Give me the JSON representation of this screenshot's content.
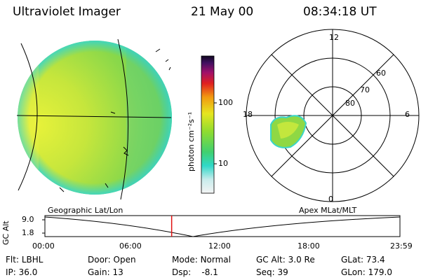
{
  "header": {
    "instrument": "Ultraviolet Imager",
    "date": "21 May 00",
    "time": "08:34:18 UT"
  },
  "colorbar": {
    "unit_label": "photon cm⁻²s⁻¹",
    "ticks": [
      "100",
      "10"
    ]
  },
  "polar_plot": {
    "mlt_labels": [
      "12",
      "18",
      "6",
      "0"
    ],
    "lat_labels": [
      "60",
      "70",
      "80"
    ]
  },
  "panels": {
    "left_caption": "Geographic Lat/Lon",
    "right_caption": "Apex MLat/MLT"
  },
  "timeline": {
    "axis_title": "GC Alt",
    "y_ticks": [
      "9.0",
      "1.8"
    ],
    "x_ticks": [
      "00:00",
      "06:00",
      "12:00",
      "18:00",
      "23:59"
    ],
    "current_time_fraction": 0.357
  },
  "status": {
    "row1": [
      {
        "label": "Flt:",
        "value": "LBHL"
      },
      {
        "label": "Door:",
        "value": "Open"
      },
      {
        "label": "Mode:",
        "value": "Normal"
      },
      {
        "label": "GC Alt:",
        "value": "3.0 Re"
      },
      {
        "label": "GLat:",
        "value": "73.4"
      }
    ],
    "row2": [
      {
        "label": "IP:",
        "value": "36.0"
      },
      {
        "label": "Gain:",
        "value": "13"
      },
      {
        "label": "Dsp:",
        "value": "-8.1"
      },
      {
        "label": "Seq:",
        "value": "39"
      },
      {
        "label": "GLon:",
        "value": "179.0"
      }
    ]
  },
  "colors": {
    "earth_green": "#7cd64a",
    "earth_yellow": "#d8ee3a",
    "edge_cyan": "#3ad6c8",
    "marker_red": "#e01010"
  }
}
